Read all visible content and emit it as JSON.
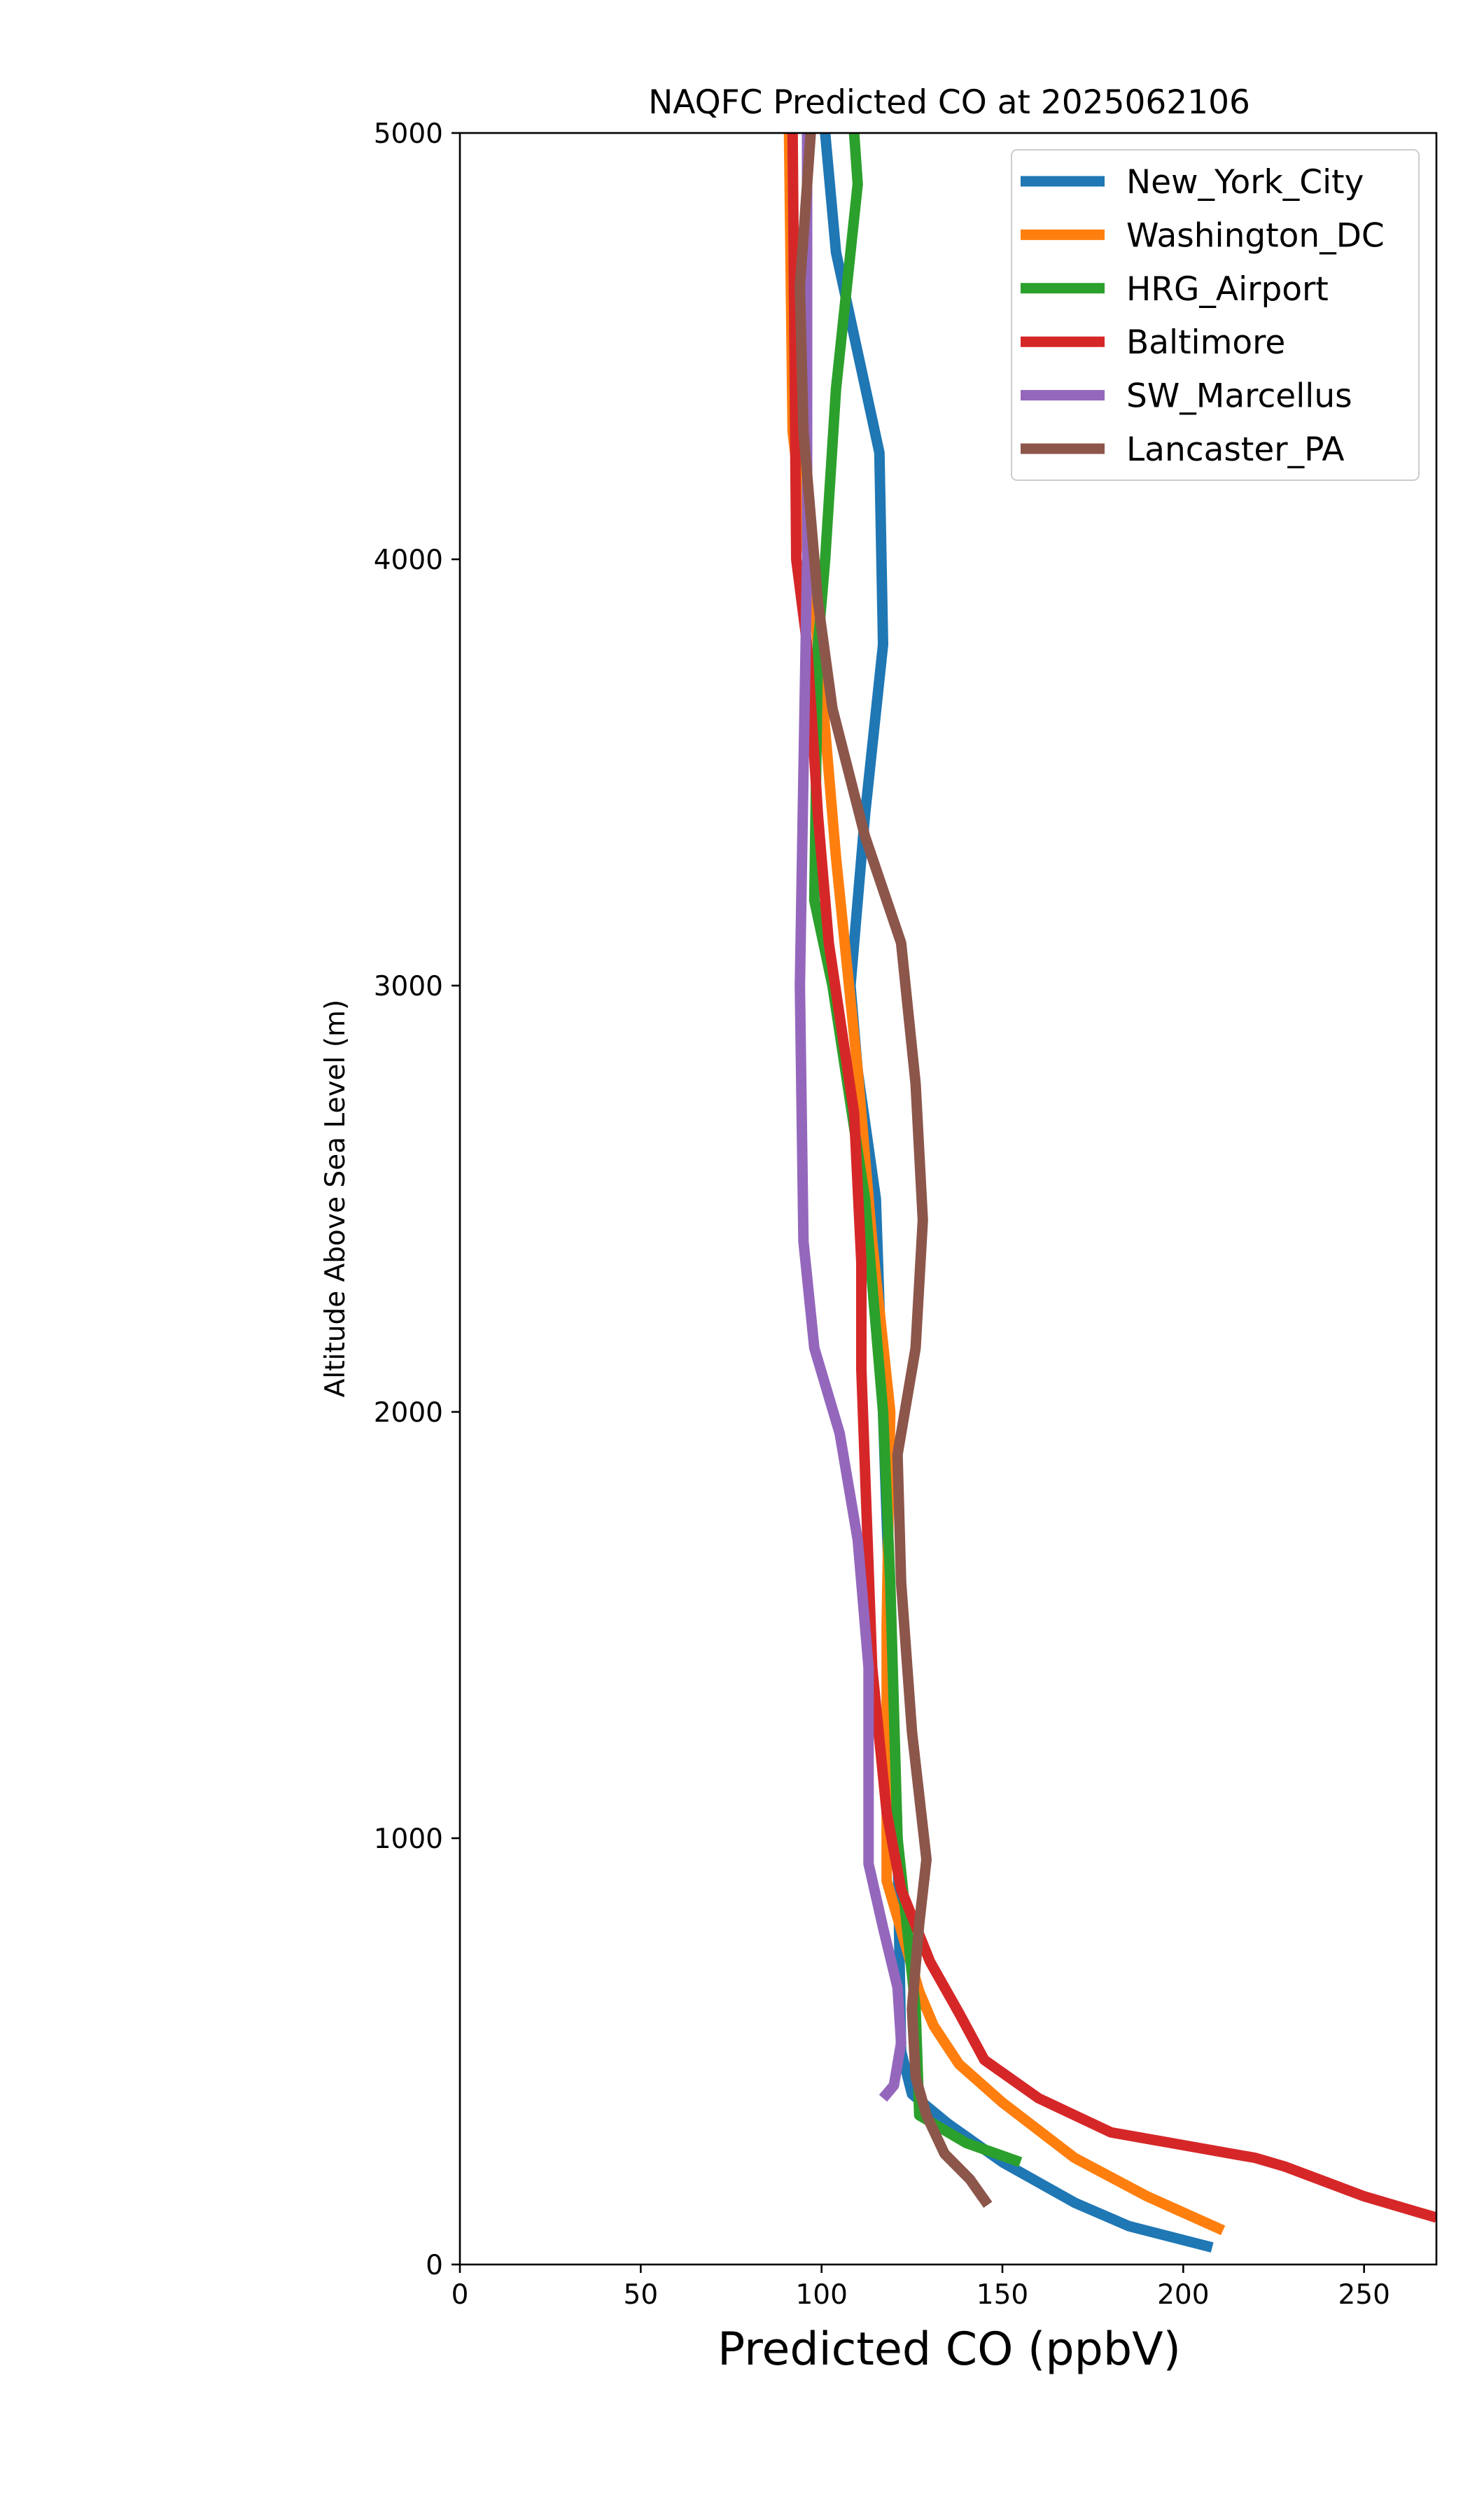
{
  "chart_data": {
    "type": "line",
    "title": "NAQFC Predicted CO at 2025062106",
    "xlabel": "Predicted CO (ppbV)",
    "ylabel": "Altitude Above Sea Level (m)",
    "xlim": [
      0,
      270
    ],
    "ylim": [
      0,
      5000
    ],
    "xticks": [
      0,
      50,
      100,
      150,
      200,
      250
    ],
    "yticks": [
      0,
      1000,
      2000,
      3000,
      4000,
      5000
    ],
    "grid": false,
    "legend_position": "upper right",
    "series": [
      {
        "name": "New_York_City",
        "color": "#1f77b4",
        "points": [
          [
            208,
            40
          ],
          [
            185,
            90
          ],
          [
            170,
            145
          ],
          [
            150,
            240
          ],
          [
            135,
            330
          ],
          [
            125,
            400
          ],
          [
            122,
            500
          ],
          [
            121,
            1000
          ],
          [
            119,
            1500
          ],
          [
            117,
            2000
          ],
          [
            115,
            2500
          ],
          [
            110,
            2800
          ],
          [
            108,
            3000
          ],
          [
            112,
            3400
          ],
          [
            117,
            3800
          ],
          [
            116,
            4250
          ],
          [
            104,
            4720
          ],
          [
            101,
            5000
          ]
        ]
      },
      {
        "name": "Washington_DC",
        "color": "#ff7f0e",
        "points": [
          [
            211,
            80
          ],
          [
            190,
            160
          ],
          [
            170,
            250
          ],
          [
            150,
            380
          ],
          [
            138,
            470
          ],
          [
            131,
            560
          ],
          [
            127,
            640
          ],
          [
            118,
            900
          ],
          [
            118,
            1500
          ],
          [
            119,
            2000
          ],
          [
            114,
            2400
          ],
          [
            110,
            2800
          ],
          [
            104,
            3300
          ],
          [
            99,
            3800
          ],
          [
            92,
            4300
          ],
          [
            91,
            5000
          ]
        ]
      },
      {
        "name": "HRG_Airport",
        "color": "#2ca02c",
        "points": [
          [
            155,
            240
          ],
          [
            140,
            285
          ],
          [
            127,
            350
          ],
          [
            126,
            600
          ],
          [
            121,
            1000
          ],
          [
            119,
            1600
          ],
          [
            117,
            2000
          ],
          [
            112,
            2500
          ],
          [
            103,
            3000
          ],
          [
            98,
            3200
          ],
          [
            99,
            3800
          ],
          [
            101,
            4000
          ],
          [
            104,
            4400
          ],
          [
            110,
            4880
          ],
          [
            109,
            5000
          ]
        ]
      },
      {
        "name": "Baltimore",
        "color": "#d62728",
        "points": [
          [
            270,
            110
          ],
          [
            250,
            160
          ],
          [
            228,
            230
          ],
          [
            220,
            250
          ],
          [
            200,
            280
          ],
          [
            180,
            310
          ],
          [
            160,
            390
          ],
          [
            145,
            480
          ],
          [
            138,
            590
          ],
          [
            130,
            710
          ],
          [
            122,
            880
          ],
          [
            118,
            1060
          ],
          [
            114,
            1400
          ],
          [
            111,
            2100
          ],
          [
            111,
            2350
          ],
          [
            109,
            2700
          ],
          [
            102,
            3100
          ],
          [
            99,
            3400
          ],
          [
            96,
            3800
          ],
          [
            93,
            4000
          ],
          [
            92,
            5000
          ]
        ]
      },
      {
        "name": "SW_Marcellus",
        "color": "#9467bd",
        "points": [
          [
            117,
            390
          ],
          [
            120,
            420
          ],
          [
            122,
            520
          ],
          [
            121,
            650
          ],
          [
            117,
            790
          ],
          [
            113,
            940
          ],
          [
            113,
            1400
          ],
          [
            110,
            1700
          ],
          [
            105,
            1950
          ],
          [
            98,
            2150
          ],
          [
            95,
            2400
          ],
          [
            94,
            3000
          ],
          [
            95,
            3500
          ],
          [
            96,
            4000
          ],
          [
            96,
            4500
          ],
          [
            96,
            5000
          ]
        ]
      },
      {
        "name": "Lancaster_PA",
        "color": "#8c564b",
        "points": [
          [
            146,
            140
          ],
          [
            141,
            200
          ],
          [
            134,
            260
          ],
          [
            129,
            350
          ],
          [
            126,
            440
          ],
          [
            125,
            600
          ],
          [
            127,
            800
          ],
          [
            129,
            950
          ],
          [
            125,
            1250
          ],
          [
            122,
            1600
          ],
          [
            121,
            1900
          ],
          [
            126,
            2150
          ],
          [
            128,
            2450
          ],
          [
            126,
            2770
          ],
          [
            122,
            3100
          ],
          [
            112,
            3350
          ],
          [
            103,
            3650
          ],
          [
            99,
            3900
          ],
          [
            95,
            4300
          ],
          [
            94,
            4640
          ],
          [
            97,
            5000
          ]
        ]
      }
    ]
  }
}
